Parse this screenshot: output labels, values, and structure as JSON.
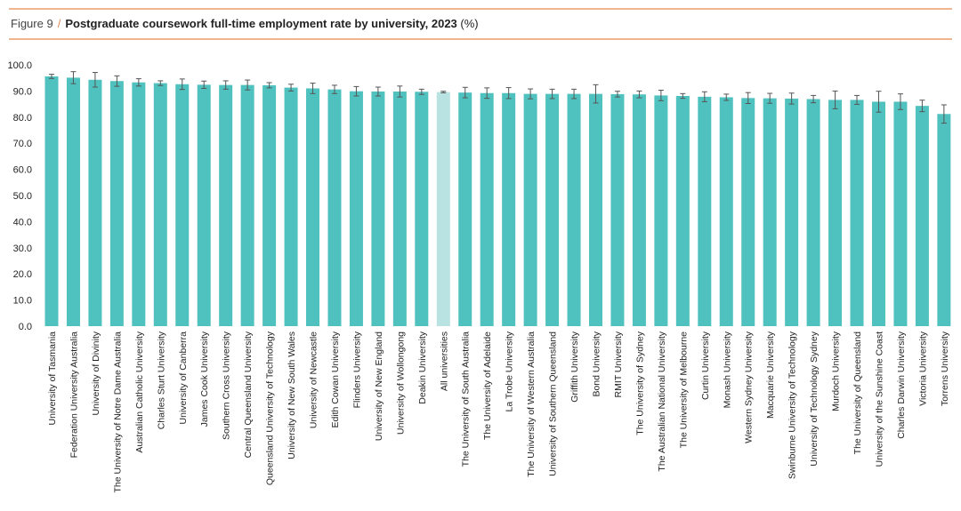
{
  "header": {
    "figure": "Figure 9",
    "separator": "/",
    "title": "Postgraduate coursework full-time employment rate by university, 2023",
    "unit": "(%)"
  },
  "colors": {
    "bar": "#4fc1be",
    "highlight": "#b9e2e3",
    "error": "#555555",
    "rule": "#f0b58f"
  },
  "chart_data": {
    "type": "bar",
    "title": "Postgraduate coursework full-time employment rate by university, 2023 (%)",
    "xlabel": "",
    "ylabel": "",
    "ylim": [
      0,
      100
    ],
    "yticks": [
      "0.0",
      "10.0",
      "20.0",
      "30.0",
      "40.0",
      "50.0",
      "60.0",
      "70.0",
      "80.0",
      "90.0",
      "100.0"
    ],
    "highlight": "All universities",
    "categories": [
      "University of Tasmania",
      "Federation University Australia",
      "University of Divinity",
      "The University of Notre Dame Australia",
      "Australian Catholic University",
      "Charles Sturt University",
      "University of Canberra",
      "James Cook University",
      "Southern Cross University",
      "Central Queensland University",
      "Queensland University of Technology",
      "University of New South Wales",
      "University of Newcastle",
      "Edith Cowan University",
      "Flinders University",
      "University of New England",
      "University of Wollongong",
      "Deakin University",
      "All universities",
      "The University of South Australia",
      "The University of Adelaide",
      "La Trobe University",
      "The University of Western Australia",
      "University of Southern Queensland",
      "Griffith University",
      "Bond University",
      "RMIT University",
      "The University of Sydney",
      "The Australian National University",
      "The University of Melbourne",
      "Curtin University",
      "Monash University",
      "Western Sydney University",
      "Macquarie University",
      "Swinburne University of Technology",
      "University of Technology Sydney",
      "Murdoch University",
      "The University of Queensland",
      "University of the Sunshine Coast",
      "Charles Darwin University",
      "Victoria University",
      "Torrens University"
    ],
    "values": [
      95.6,
      95.1,
      94.3,
      93.8,
      93.3,
      93.0,
      92.6,
      92.4,
      92.3,
      92.3,
      92.2,
      91.3,
      91.0,
      90.6,
      89.9,
      89.8,
      89.8,
      89.7,
      89.6,
      89.4,
      89.2,
      89.2,
      88.9,
      88.9,
      88.9,
      88.9,
      88.8,
      88.7,
      88.3,
      88.1,
      87.8,
      87.6,
      87.3,
      87.2,
      87.1,
      86.9,
      86.6,
      86.6,
      85.9,
      85.9,
      84.3,
      81.2
    ],
    "errors": [
      0.8,
      2.3,
      2.8,
      2.0,
      1.4,
      0.9,
      2.0,
      1.4,
      1.6,
      1.9,
      1.0,
      1.3,
      2.0,
      1.6,
      1.8,
      1.7,
      2.1,
      1.0,
      0.3,
      2.0,
      2.0,
      2.1,
      1.9,
      1.8,
      1.8,
      3.5,
      1.1,
      1.3,
      2.0,
      0.9,
      1.9,
      1.2,
      2.1,
      1.9,
      2.1,
      1.4,
      3.4,
      1.7,
      4.0,
      3.0,
      2.2,
      3.5
    ]
  }
}
